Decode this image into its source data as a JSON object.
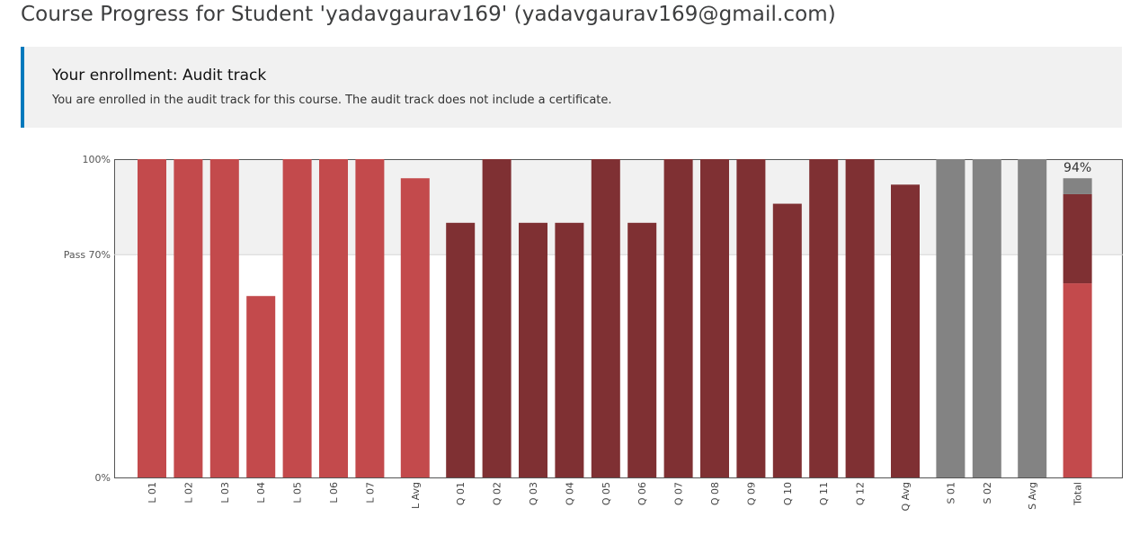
{
  "header": {
    "title": "Course Progress for Student 'yadavgaurav169' (yadavgaurav169@gmail.com)"
  },
  "enrollment": {
    "title": "Your enrollment: Audit track",
    "message": "You are enrolled in the audit track for this course. The audit track does not include a certificate."
  },
  "colors": {
    "lab": "#c34a4c",
    "quiz": "#7f3033",
    "other": "#838383",
    "pass_band": "#f1f1f1",
    "accent": "#0079bc"
  },
  "chart_data": {
    "type": "bar",
    "ylim": [
      0,
      100
    ],
    "y_ticks": [
      {
        "value": 0,
        "label": "0%"
      },
      {
        "value": 70,
        "label": "Pass 70%"
      },
      {
        "value": 100,
        "label": "100%"
      }
    ],
    "pass_threshold": 70,
    "bars": [
      {
        "label": "L 01",
        "value": 100,
        "group": "lab"
      },
      {
        "label": "L 02",
        "value": 100,
        "group": "lab"
      },
      {
        "label": "L 03",
        "value": 100,
        "group": "lab"
      },
      {
        "label": "L 04",
        "value": 57,
        "group": "lab"
      },
      {
        "label": "L 05",
        "value": 100,
        "group": "lab"
      },
      {
        "label": "L 06",
        "value": 100,
        "group": "lab"
      },
      {
        "label": "L 07",
        "value": 100,
        "group": "lab"
      },
      {
        "label": "L Avg",
        "value": 94,
        "group": "lab",
        "gap_before": true
      },
      {
        "label": "Q 01",
        "value": 80,
        "group": "quiz",
        "gap_before": true
      },
      {
        "label": "Q 02",
        "value": 100,
        "group": "quiz"
      },
      {
        "label": "Q 03",
        "value": 80,
        "group": "quiz"
      },
      {
        "label": "Q 04",
        "value": 80,
        "group": "quiz"
      },
      {
        "label": "Q 05",
        "value": 100,
        "group": "quiz"
      },
      {
        "label": "Q 06",
        "value": 80,
        "group": "quiz"
      },
      {
        "label": "Q 07",
        "value": 100,
        "group": "quiz"
      },
      {
        "label": "Q 08",
        "value": 100,
        "group": "quiz"
      },
      {
        "label": "Q 09",
        "value": 100,
        "group": "quiz"
      },
      {
        "label": "Q 10",
        "value": 86,
        "group": "quiz"
      },
      {
        "label": "Q 11",
        "value": 100,
        "group": "quiz"
      },
      {
        "label": "Q 12",
        "value": 100,
        "group": "quiz"
      },
      {
        "label": "Q Avg",
        "value": 92,
        "group": "quiz",
        "gap_before": true
      },
      {
        "label": "S 01",
        "value": 100,
        "group": "other",
        "gap_before": true
      },
      {
        "label": "S 02",
        "value": 100,
        "group": "other"
      },
      {
        "label": "S Avg",
        "value": 100,
        "group": "other",
        "gap_before": true
      }
    ],
    "total": {
      "label": "Total",
      "display": "94%",
      "stack": [
        {
          "group": "lab",
          "value": 61
        },
        {
          "group": "quiz",
          "value": 28
        },
        {
          "group": "other",
          "value": 5
        }
      ]
    }
  }
}
